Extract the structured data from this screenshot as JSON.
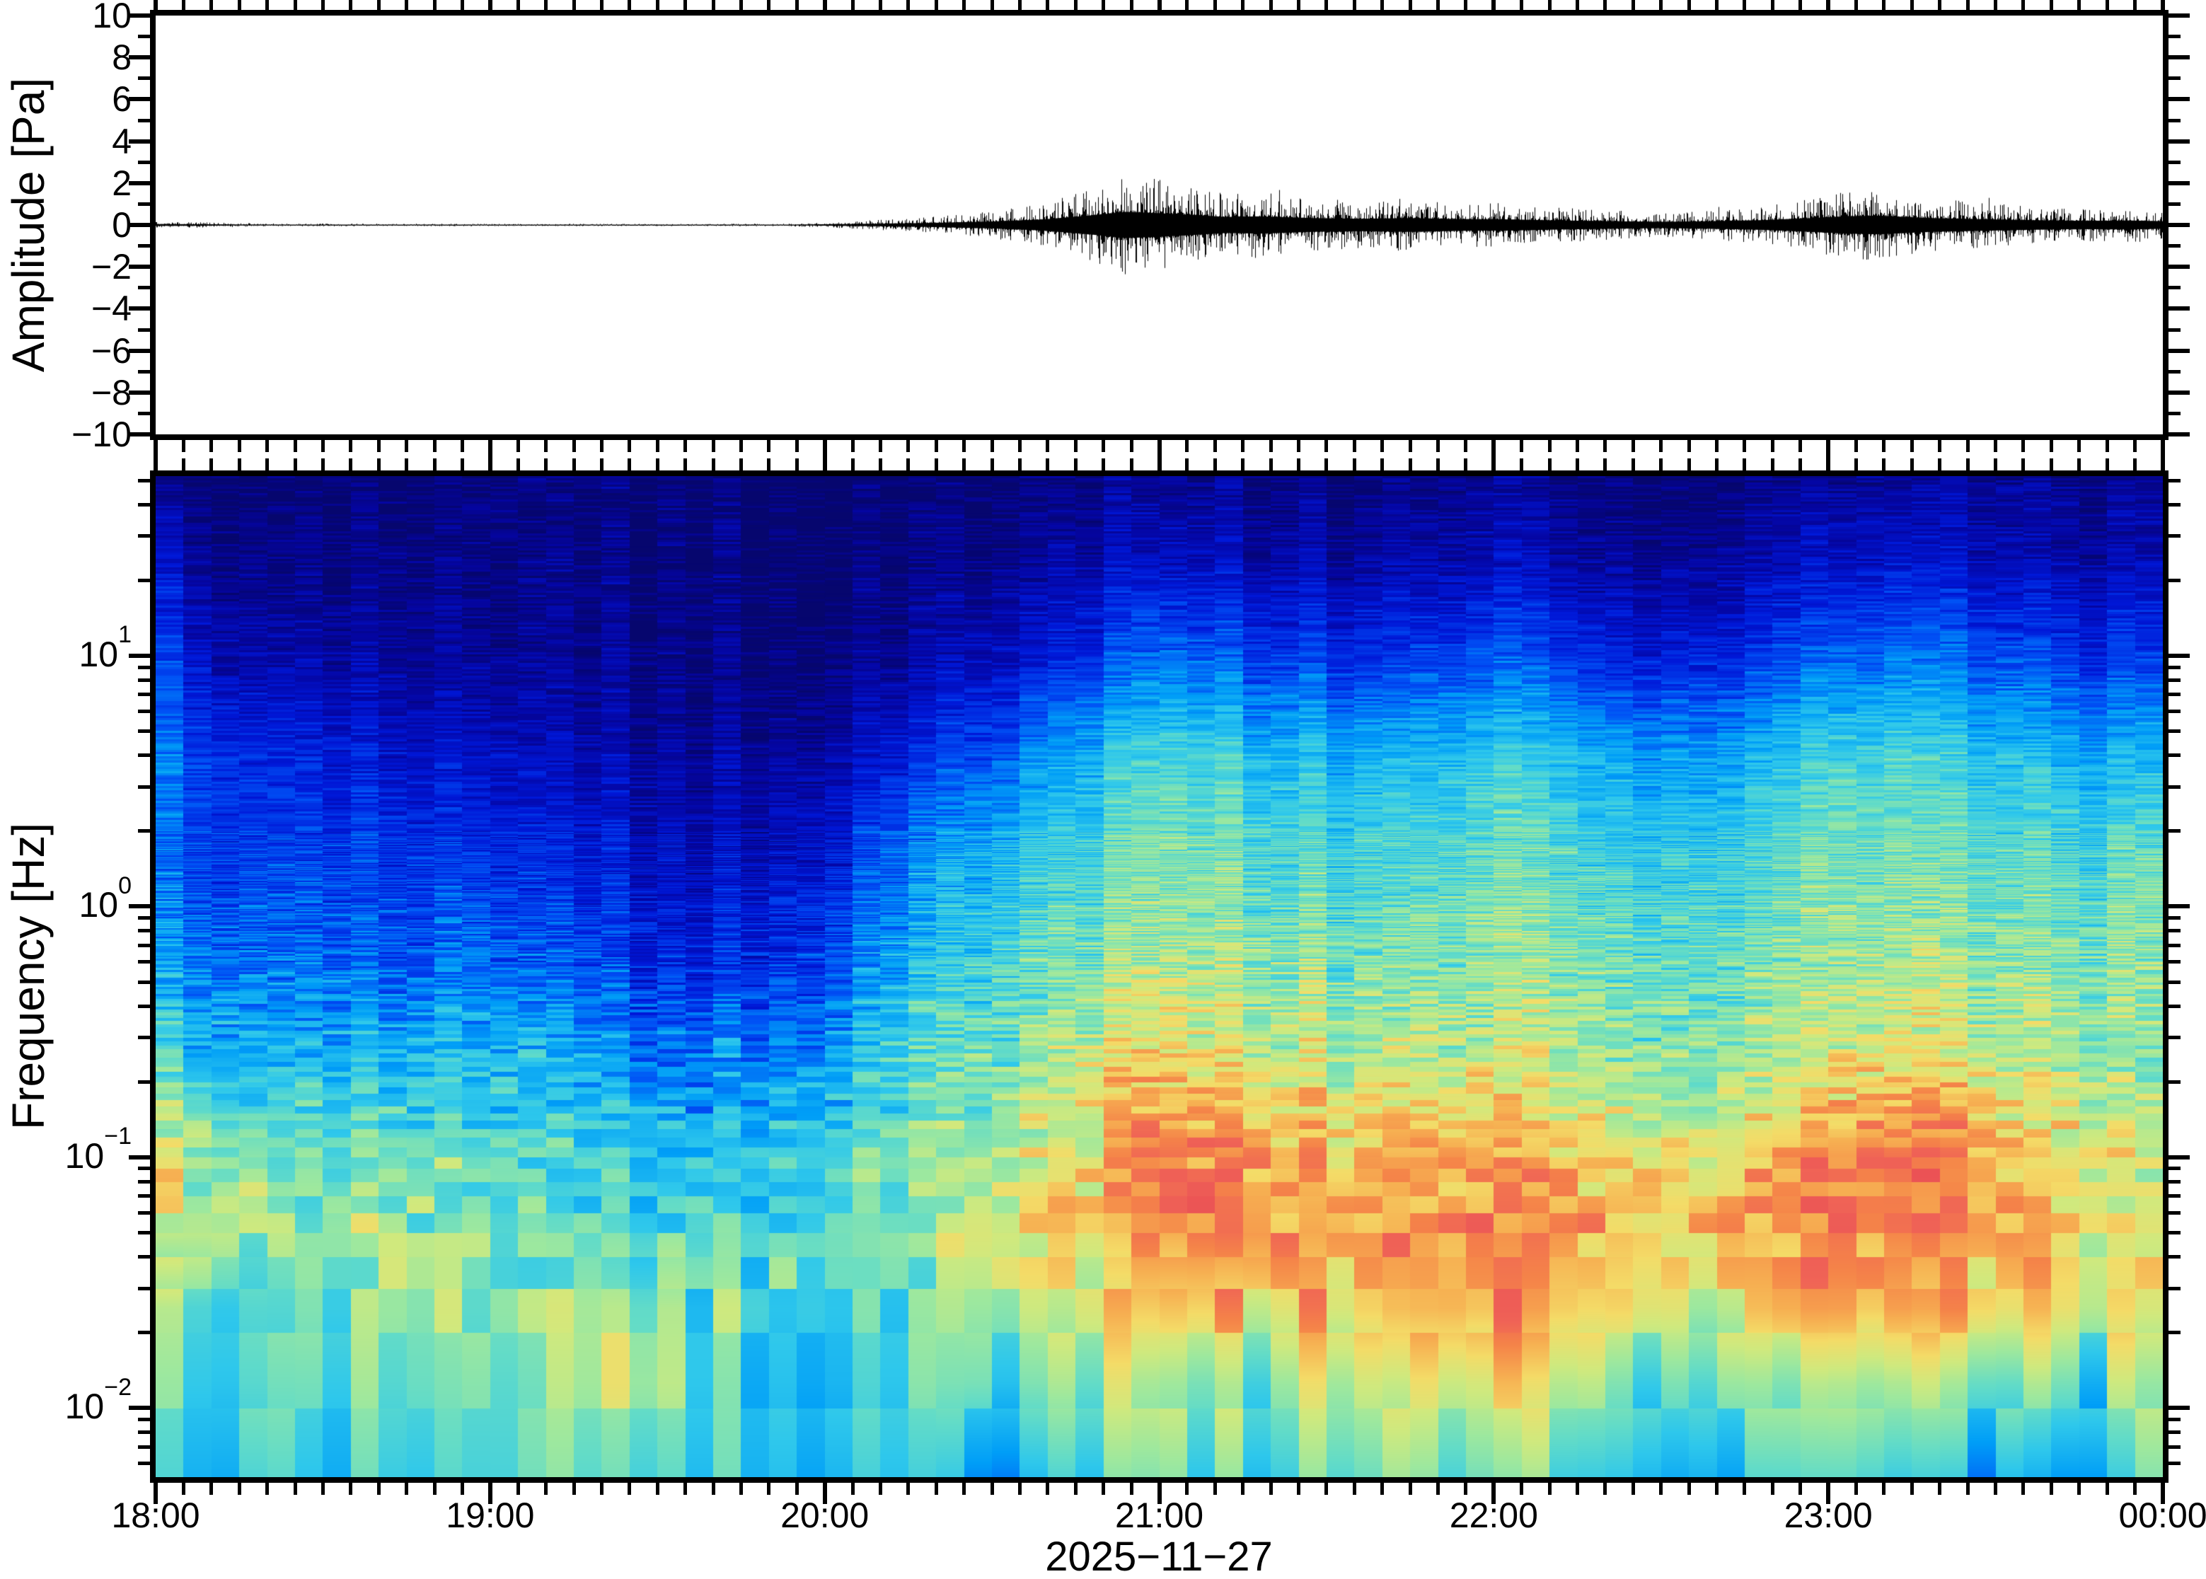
{
  "axes": {
    "x": {
      "label": "2025−11−27",
      "hour_labels": [
        "18:00",
        "19:00",
        "20:00",
        "21:00",
        "22:00",
        "23:00",
        "00:00"
      ],
      "hour_values": [
        18,
        19,
        20,
        21,
        22,
        23,
        24
      ],
      "minor_interval_minutes": 5
    },
    "amplitude": {
      "label": "Amplitude [Pa]",
      "range": [
        -10,
        10
      ],
      "tick_values": [
        10,
        8,
        6,
        4,
        2,
        0,
        -2,
        -4,
        -6,
        -8,
        -10
      ],
      "tick_labels": [
        "10",
        "8",
        "6",
        "4",
        "2",
        "0",
        "−2",
        "−4",
        "−6",
        "−8",
        "−10"
      ],
      "minor_tick_values": [
        9,
        7,
        5,
        3,
        1,
        -1,
        -3,
        -5,
        -7,
        -9
      ]
    },
    "frequency": {
      "label": "Frequency [Hz]",
      "range_hz": [
        0.0053,
        52
      ],
      "major_ticks": [
        {
          "value": 10,
          "base": "10",
          "exp": "1"
        },
        {
          "value": 1,
          "base": "10",
          "exp": "0"
        },
        {
          "value": 0.1,
          "base": "10",
          "exp": "−1"
        },
        {
          "value": 0.01,
          "base": "10",
          "exp": "−2"
        }
      ],
      "minor_ticks_hz": [
        50,
        40,
        30,
        20,
        9,
        8,
        7,
        6,
        5,
        4,
        3,
        2,
        0.9,
        0.8,
        0.7,
        0.6,
        0.5,
        0.4,
        0.3,
        0.2,
        0.09,
        0.08,
        0.07,
        0.06,
        0.05,
        0.04,
        0.03,
        0.02,
        0.009,
        0.008,
        0.007,
        0.006
      ]
    }
  },
  "chart_data": [
    {
      "type": "line",
      "name": "infrasound-waveform",
      "ylabel": "Amplitude [Pa]",
      "xlim_hours": [
        18,
        24
      ],
      "ylim": [
        -10,
        10
      ],
      "x_tick_labels": [
        "18:00",
        "19:00",
        "20:00",
        "21:00",
        "22:00",
        "23:00",
        "00:00"
      ],
      "line_color": "#000000",
      "envelope_hours": [
        18.0,
        18.1,
        18.25,
        18.4,
        19.0,
        19.5,
        19.9,
        20.0,
        20.15,
        20.3,
        20.5,
        20.65,
        20.8,
        20.9,
        21.0,
        21.1,
        21.2,
        21.3,
        21.45,
        21.6,
        21.75,
        21.9,
        22.05,
        22.2,
        22.35,
        22.5,
        22.65,
        22.8,
        22.95,
        23.05,
        23.15,
        23.3,
        23.45,
        23.6,
        23.75,
        23.9,
        24.0
      ],
      "envelope_pa": [
        0.13,
        0.11,
        0.07,
        0.05,
        0.045,
        0.04,
        0.05,
        0.1,
        0.18,
        0.28,
        0.5,
        0.8,
        1.4,
        1.9,
        1.7,
        1.45,
        1.15,
        1.25,
        1.0,
        0.9,
        1.0,
        0.85,
        0.8,
        0.65,
        0.55,
        0.45,
        0.55,
        0.7,
        1.0,
        1.25,
        1.35,
        1.0,
        0.85,
        0.7,
        0.6,
        0.65,
        0.55
      ],
      "description": "Quiet trace ±0.05 Pa from 18:00–20:00, tremor onset near 20:00, strongest bursts ±2 Pa around 21:00, secondary swell ±1.4 Pa around 23:10, tapering to ±0.5 Pa at 00:00"
    },
    {
      "type": "heatmap",
      "name": "spectrogram",
      "xlabel": "2025−11−27",
      "ylabel": "Frequency [Hz]",
      "time_bin_minutes": 5,
      "x_hours": [
        18,
        18.25,
        18.5,
        18.75,
        19,
        19.25,
        19.5,
        19.75,
        20,
        20.25,
        20.5,
        20.75,
        21,
        21.25,
        21.5,
        21.75,
        22,
        22.25,
        22.5,
        22.75,
        23,
        23.25,
        23.5,
        23.75,
        24
      ],
      "freq_hz": [
        50,
        25,
        10,
        4,
        1.6,
        0.63,
        0.25,
        0.1,
        0.05,
        0.025,
        0.0126,
        0.0053
      ],
      "levels": [
        [
          0.05,
          0.02,
          0.02,
          0.02,
          0.02,
          0.02,
          0.02,
          0.02,
          0.02,
          0.02,
          0.03,
          0.04,
          0.06,
          0.05,
          0.04,
          0.04,
          0.05,
          0.04,
          0.04,
          0.04,
          0.06,
          0.07,
          0.06,
          0.05,
          0.04
        ],
        [
          0.15,
          0.05,
          0.04,
          0.04,
          0.03,
          0.03,
          0.03,
          0.03,
          0.03,
          0.04,
          0.06,
          0.09,
          0.13,
          0.11,
          0.09,
          0.09,
          0.11,
          0.09,
          0.08,
          0.09,
          0.13,
          0.15,
          0.12,
          0.09,
          0.07
        ],
        [
          0.25,
          0.12,
          0.1,
          0.08,
          0.06,
          0.05,
          0.04,
          0.04,
          0.05,
          0.09,
          0.15,
          0.21,
          0.31,
          0.27,
          0.23,
          0.23,
          0.27,
          0.23,
          0.2,
          0.22,
          0.3,
          0.32,
          0.28,
          0.24,
          0.2
        ],
        [
          0.34,
          0.22,
          0.2,
          0.16,
          0.14,
          0.1,
          0.08,
          0.08,
          0.11,
          0.21,
          0.31,
          0.41,
          0.51,
          0.47,
          0.43,
          0.43,
          0.47,
          0.44,
          0.4,
          0.42,
          0.5,
          0.5,
          0.46,
          0.42,
          0.4
        ],
        [
          0.3,
          0.26,
          0.26,
          0.24,
          0.22,
          0.18,
          0.14,
          0.14,
          0.19,
          0.35,
          0.45,
          0.51,
          0.57,
          0.55,
          0.51,
          0.51,
          0.55,
          0.52,
          0.5,
          0.5,
          0.56,
          0.56,
          0.54,
          0.52,
          0.52
        ],
        [
          0.38,
          0.33,
          0.32,
          0.3,
          0.3,
          0.26,
          0.2,
          0.22,
          0.28,
          0.44,
          0.52,
          0.57,
          0.63,
          0.61,
          0.58,
          0.57,
          0.59,
          0.58,
          0.56,
          0.56,
          0.61,
          0.62,
          0.6,
          0.58,
          0.56
        ],
        [
          0.5,
          0.46,
          0.44,
          0.44,
          0.44,
          0.4,
          0.34,
          0.36,
          0.42,
          0.54,
          0.58,
          0.65,
          0.73,
          0.69,
          0.66,
          0.64,
          0.66,
          0.64,
          0.6,
          0.62,
          0.69,
          0.7,
          0.66,
          0.62,
          0.58
        ],
        [
          0.7,
          0.62,
          0.55,
          0.58,
          0.52,
          0.5,
          0.45,
          0.48,
          0.5,
          0.6,
          0.66,
          0.74,
          0.88,
          0.84,
          0.78,
          0.8,
          0.81,
          0.78,
          0.72,
          0.75,
          0.84,
          0.88,
          0.8,
          0.72,
          0.62
        ],
        [
          0.72,
          0.65,
          0.6,
          0.62,
          0.55,
          0.56,
          0.5,
          0.52,
          0.54,
          0.6,
          0.68,
          0.75,
          0.88,
          0.86,
          0.84,
          0.82,
          0.84,
          0.82,
          0.78,
          0.8,
          0.86,
          0.86,
          0.82,
          0.75,
          0.66
        ],
        [
          0.55,
          0.58,
          0.6,
          0.62,
          0.55,
          0.58,
          0.6,
          0.55,
          0.56,
          0.58,
          0.64,
          0.7,
          0.76,
          0.74,
          0.78,
          0.8,
          0.8,
          0.76,
          0.72,
          0.74,
          0.8,
          0.78,
          0.75,
          0.7,
          0.62
        ],
        [
          0.52,
          0.55,
          0.56,
          0.6,
          0.52,
          0.56,
          0.62,
          0.52,
          0.54,
          0.56,
          0.58,
          0.62,
          0.64,
          0.62,
          0.66,
          0.68,
          0.66,
          0.64,
          0.6,
          0.62,
          0.64,
          0.62,
          0.58,
          0.56,
          0.52
        ],
        [
          0.5,
          0.48,
          0.52,
          0.55,
          0.5,
          0.52,
          0.56,
          0.5,
          0.48,
          0.52,
          0.42,
          0.5,
          0.55,
          0.52,
          0.56,
          0.58,
          0.55,
          0.52,
          0.48,
          0.5,
          0.52,
          0.48,
          0.42,
          0.4,
          0.44
        ]
      ],
      "level_scale": "relative spectral power 0–1 (no colorbar shown in figure)",
      "colormap": {
        "name": "jet-like rainbow",
        "anchors": [
          [
            0.0,
            "#06066E"
          ],
          [
            0.08,
            "#0505A0"
          ],
          [
            0.18,
            "#0018D8"
          ],
          [
            0.28,
            "#0050F5"
          ],
          [
            0.38,
            "#009EF8"
          ],
          [
            0.47,
            "#2FC8EC"
          ],
          [
            0.54,
            "#63DCC8"
          ],
          [
            0.61,
            "#9CE8A0"
          ],
          [
            0.67,
            "#CFEA7F"
          ],
          [
            0.73,
            "#F4DC68"
          ],
          [
            0.79,
            "#F7B052"
          ],
          [
            0.85,
            "#F58449"
          ],
          [
            0.91,
            "#F06357"
          ],
          [
            1.0,
            "#EA4F55"
          ]
        ]
      }
    }
  ]
}
